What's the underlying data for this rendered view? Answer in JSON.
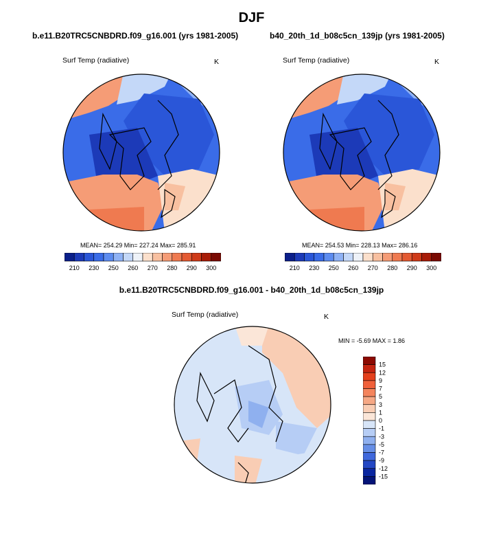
{
  "page_title": "DJF",
  "panels": [
    {
      "case_title": "b.e11.B20TRC5CNBDRD.f09_g16.001 (yrs 1981-2005)",
      "variable": "Surf Temp (radiative)",
      "units": "K",
      "stats": "MEAN= 254.29  Min= 227.24  Max= 285.91"
    },
    {
      "case_title": "b40_20th_1d_b08c5cn_139jp (yrs 1981-2005)",
      "variable": "Surf Temp (radiative)",
      "units": "K",
      "stats": "MEAN= 254.53  Min= 228.13  Max= 286.16"
    }
  ],
  "diff_panel": {
    "title": "b.e11.B20TRC5CNBDRD.f09_g16.001 - b40_20th_1d_b08c5cn_139jp",
    "variable": "Surf Temp (radiative)",
    "units": "K",
    "minmax": "MIN =  -5.69 MAX =   1.86"
  },
  "abs_colorbar": {
    "labels": [
      "210",
      "230",
      "250",
      "260",
      "270",
      "280",
      "290",
      "300"
    ],
    "colors": [
      "#0b1f8a",
      "#1c3ab8",
      "#2a56d8",
      "#3a6ce8",
      "#5d8cf0",
      "#8fb2f5",
      "#c4d8f8",
      "#eef2f8",
      "#fbe0cc",
      "#f8c0a0",
      "#f59c76",
      "#ef7a50",
      "#e45a32",
      "#cf3a18",
      "#a81c08",
      "#7a0a02"
    ]
  },
  "diff_colorbar": {
    "labels": [
      "15",
      "12",
      "9",
      "7",
      "5",
      "3",
      "1",
      "0",
      "-1",
      "-3",
      "-5",
      "-7",
      "-9",
      "-12",
      "-15"
    ],
    "colors": [
      "#8c0a02",
      "#c42410",
      "#e4401c",
      "#f0603a",
      "#f4845c",
      "#f6a885",
      "#f9cdb4",
      "#fbe6d8",
      "#d7e5f8",
      "#b6cdf5",
      "#8fb0ef",
      "#668ee6",
      "#3f68dc",
      "#2347c4",
      "#0a26a0",
      "#041478"
    ]
  }
}
